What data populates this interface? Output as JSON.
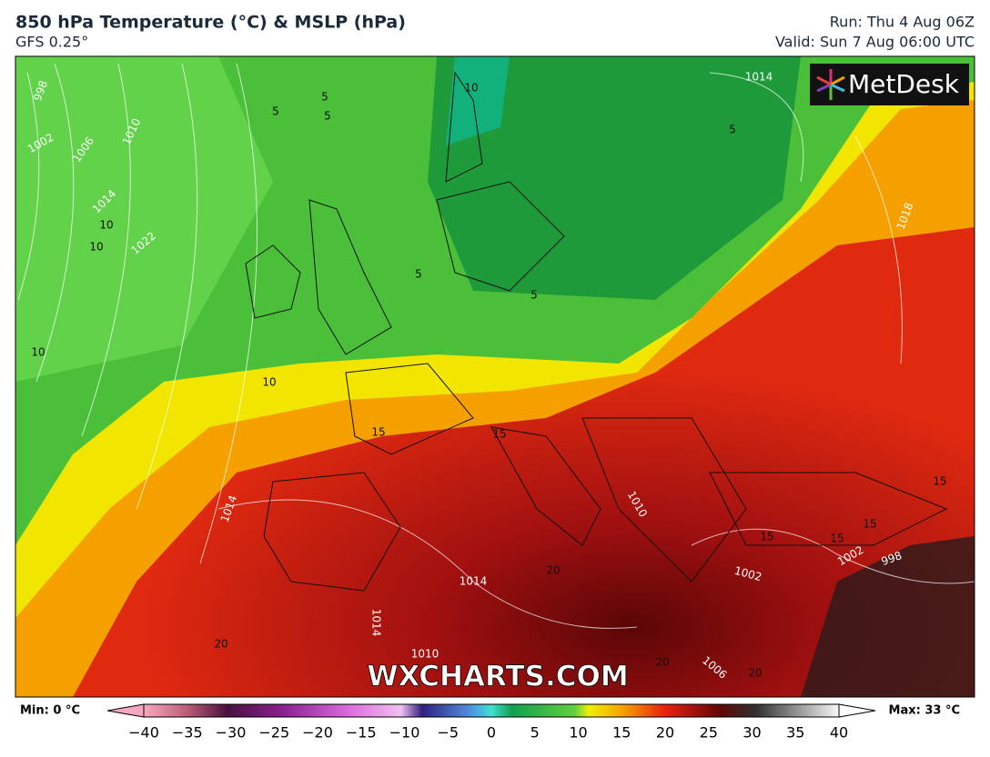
{
  "header": {
    "title": "850 hPa Temperature (°C) & MSLP (hPa)",
    "subtitle": "GFS 0.25°",
    "run": "Run: Thu 4 Aug 06Z",
    "valid": "Valid: Sun 7 Aug 06:00 UTC"
  },
  "logo": "MetDesk",
  "watermark": "WXCHARTS.COM",
  "colorbar": {
    "min_label": "Min: 0 °C",
    "max_label": "Max: 33 °C",
    "ticks": [
      {
        "value": -40,
        "label": "−40"
      },
      {
        "value": -35,
        "label": "−35"
      },
      {
        "value": -30,
        "label": "−30"
      },
      {
        "value": -25,
        "label": "−25"
      },
      {
        "value": -20,
        "label": "−20"
      },
      {
        "value": -15,
        "label": "−15"
      },
      {
        "value": -10,
        "label": "−10"
      },
      {
        "value": -5,
        "label": "−5"
      },
      0,
      5,
      10,
      15,
      20,
      25,
      30,
      35,
      40
    ]
  },
  "isobar_labels": [
    "998",
    "1002",
    "1006",
    "1010",
    "1014",
    "1022",
    "1014",
    "1018",
    "1014",
    "1014",
    "1010",
    "1014",
    "1002",
    "998",
    "1002",
    "1006",
    "1010"
  ],
  "temperature_labels": [
    "5",
    "5",
    "5",
    "5",
    "10",
    "10",
    "5",
    "5",
    "10",
    "10",
    "15",
    "15",
    "15",
    "15",
    "15",
    "15",
    "20",
    "20",
    "20",
    "20",
    "10"
  ]
}
